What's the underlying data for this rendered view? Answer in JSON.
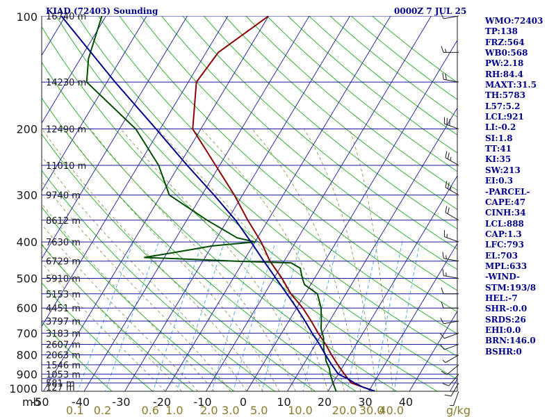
{
  "header": {
    "station": "KIAD (72403) Sounding",
    "time": "0000Z  7 JUL 25"
  },
  "stats": [
    "WMO:72403",
    "TP:138",
    "FRZ:564",
    "WB0:568",
    "PW:2.18",
    "RH:84.4",
    "MAXT:31.5",
    "TH:5783",
    "L57:5.2",
    "LCL:921",
    "LI:-0.2",
    "SI:1.8",
    "TT:41",
    "KI:35",
    "SW:213",
    "EI:0.3",
    "-PARCEL-",
    "CAPE:47",
    "CINH:34",
    "LCL:888",
    "CAP:1.3",
    "LFC:793",
    "EL:703",
    "MPL:633",
    "-WIND-",
    "STM:193/8",
    "HEL:-7",
    "SHR-:0.0",
    "SRDS:26",
    "EHI:0.0",
    "BRN:146.0",
    "BSHR:0"
  ],
  "chart_data": {
    "type": "line",
    "title": "KIAD (72403) Sounding",
    "pressure_ticks": [
      {
        "p": 100,
        "label": "100"
      },
      {
        "p": 200,
        "label": "200"
      },
      {
        "p": 300,
        "label": "300"
      },
      {
        "p": 400,
        "label": "400"
      },
      {
        "p": 500,
        "label": "500"
      },
      {
        "p": 600,
        "label": "600"
      },
      {
        "p": 700,
        "label": "700"
      },
      {
        "p": 800,
        "label": "800"
      },
      {
        "p": 900,
        "label": "900"
      },
      {
        "p": 1000,
        "label": "1000"
      }
    ],
    "isobars": [
      100,
      150,
      200,
      250,
      300,
      350,
      400,
      450,
      500,
      550,
      600,
      650,
      700,
      750,
      800,
      850,
      900,
      925,
      950,
      1000
    ],
    "height_labels": [
      {
        "p": 100,
        "label": "16740 m"
      },
      {
        "p": 150,
        "label": "14230 m"
      },
      {
        "p": 200,
        "label": "12490 m"
      },
      {
        "p": 250,
        "label": "11010 m"
      },
      {
        "p": 300,
        "label": "9740 m"
      },
      {
        "p": 350,
        "label": "8612 m"
      },
      {
        "p": 400,
        "label": "7630 m"
      },
      {
        "p": 450,
        "label": "6729 m"
      },
      {
        "p": 500,
        "label": "5910 m"
      },
      {
        "p": 550,
        "label": "5153 m"
      },
      {
        "p": 600,
        "label": "4451 m"
      },
      {
        "p": 650,
        "label": "3797 m"
      },
      {
        "p": 700,
        "label": "3183 m"
      },
      {
        "p": 750,
        "label": "2607 m"
      },
      {
        "p": 800,
        "label": "2063 m"
      },
      {
        "p": 850,
        "label": "1546 m"
      },
      {
        "p": 900,
        "label": "1053 m"
      },
      {
        "p": 950,
        "label": "581 m"
      },
      {
        "p": 1000,
        "label": "127 m"
      }
    ],
    "temp_axis": {
      "unit_label": "mb",
      "ticks": [
        {
          "t": -50,
          "label": "-50"
        },
        {
          "t": -40,
          "label": "-40"
        },
        {
          "t": -30,
          "label": "-30"
        },
        {
          "t": -20,
          "label": "-20"
        },
        {
          "t": -10,
          "label": "-10"
        },
        {
          "t": 0,
          "label": "0"
        },
        {
          "t": 10,
          "label": "10"
        },
        {
          "t": 20,
          "label": "20"
        },
        {
          "t": 30,
          "label": "30"
        },
        {
          "t": 40,
          "label": "40"
        }
      ]
    },
    "mixing_ratio_axis": {
      "unit_label": "g/kg",
      "ticks": [
        {
          "w": 0.1,
          "label": "0.1"
        },
        {
          "w": 0.2,
          "label": "0.2"
        },
        {
          "w": 0.6,
          "label": "0.6"
        },
        {
          "w": 1.0,
          "label": "1.0"
        },
        {
          "w": 2.0,
          "label": "2.0"
        },
        {
          "w": 3.0,
          "label": "3.0"
        },
        {
          "w": 5.0,
          "label": "5.0"
        },
        {
          "w": 10.0,
          "label": "10.0"
        },
        {
          "w": 20.0,
          "label": "20.0"
        },
        {
          "w": 30.0,
          "label": "30.0"
        },
        {
          "w": 40.0,
          "label": "40.0"
        }
      ]
    },
    "series": [
      {
        "key": "temperature",
        "color": "#8b0000",
        "points": [
          [
            1000,
            31.5
          ],
          [
            975,
            28
          ],
          [
            950,
            24.5
          ],
          [
            925,
            23
          ],
          [
            900,
            21.5
          ],
          [
            850,
            18.5
          ],
          [
            800,
            15.5
          ],
          [
            750,
            12.5
          ],
          [
            700,
            9
          ],
          [
            650,
            5.5
          ],
          [
            600,
            1.5
          ],
          [
            550,
            -3.5
          ],
          [
            500,
            -8
          ],
          [
            450,
            -13.5
          ],
          [
            400,
            -18.5
          ],
          [
            350,
            -25
          ],
          [
            300,
            -32
          ],
          [
            250,
            -41
          ],
          [
            200,
            -52
          ],
          [
            150,
            -58
          ],
          [
            125,
            -57
          ],
          [
            100,
            -50
          ]
        ]
      },
      {
        "key": "dewpoint",
        "color": "#004d00",
        "points": [
          [
            1000,
            22
          ],
          [
            975,
            21
          ],
          [
            950,
            20
          ],
          [
            925,
            19
          ],
          [
            900,
            18
          ],
          [
            870,
            17
          ],
          [
            850,
            16
          ],
          [
            830,
            15
          ],
          [
            800,
            14
          ],
          [
            780,
            13
          ],
          [
            750,
            12
          ],
          [
            720,
            11
          ],
          [
            700,
            10
          ],
          [
            680,
            9
          ],
          [
            650,
            8
          ],
          [
            600,
            6
          ],
          [
            550,
            3
          ],
          [
            520,
            -1.5
          ],
          [
            500,
            -3
          ],
          [
            470,
            -5
          ],
          [
            455,
            -8
          ],
          [
            450,
            -22
          ],
          [
            445,
            -33
          ],
          [
            440,
            -45
          ],
          [
            430,
            -40
          ],
          [
            420,
            -35
          ],
          [
            410,
            -30
          ],
          [
            400,
            -20
          ],
          [
            390,
            -25
          ],
          [
            350,
            -35
          ],
          [
            300,
            -48
          ],
          [
            250,
            -55
          ],
          [
            200,
            -66
          ],
          [
            150,
            -85
          ],
          [
            130,
            -88
          ],
          [
            100,
            -91
          ]
        ]
      },
      {
        "key": "parcel",
        "color": "#00008b",
        "points": [
          [
            1000,
            31.5
          ],
          [
            975,
            28
          ],
          [
            950,
            25.3
          ],
          [
            925,
            22.9
          ],
          [
            900,
            20
          ],
          [
            850,
            17
          ],
          [
            800,
            14
          ],
          [
            750,
            11
          ],
          [
            700,
            7.5
          ],
          [
            650,
            4
          ],
          [
            600,
            0
          ],
          [
            550,
            -4.5
          ],
          [
            500,
            -9.5
          ],
          [
            450,
            -15
          ],
          [
            400,
            -21
          ],
          [
            350,
            -28
          ],
          [
            300,
            -37
          ],
          [
            250,
            -48
          ],
          [
            200,
            -61
          ],
          [
            150,
            -78
          ],
          [
            100,
            -101
          ]
        ]
      }
    ],
    "wind_barbs": [
      {
        "p": 1000,
        "dir": 200,
        "kt": 5
      },
      {
        "p": 950,
        "dir": 210,
        "kt": 10
      },
      {
        "p": 900,
        "dir": 220,
        "kt": 10
      },
      {
        "p": 850,
        "dir": 230,
        "kt": 10
      },
      {
        "p": 800,
        "dir": 240,
        "kt": 5
      },
      {
        "p": 750,
        "dir": 250,
        "kt": 10
      },
      {
        "p": 700,
        "dir": 250,
        "kt": 10
      },
      {
        "p": 650,
        "dir": 260,
        "kt": 10
      },
      {
        "p": 600,
        "dir": 270,
        "kt": 10
      },
      {
        "p": 550,
        "dir": 270,
        "kt": 10
      },
      {
        "p": 500,
        "dir": 280,
        "kt": 15
      },
      {
        "p": 450,
        "dir": 280,
        "kt": 15
      },
      {
        "p": 400,
        "dir": 290,
        "kt": 15
      },
      {
        "p": 350,
        "dir": 300,
        "kt": 20
      },
      {
        "p": 300,
        "dir": 300,
        "kt": 25
      },
      {
        "p": 250,
        "dir": 300,
        "kt": 25
      },
      {
        "p": 200,
        "dir": 290,
        "kt": 30
      },
      {
        "p": 150,
        "dir": 280,
        "kt": 20
      },
      {
        "p": 125,
        "dir": 270,
        "kt": 15
      },
      {
        "p": 100,
        "dir": 260,
        "kt": 10
      }
    ]
  }
}
